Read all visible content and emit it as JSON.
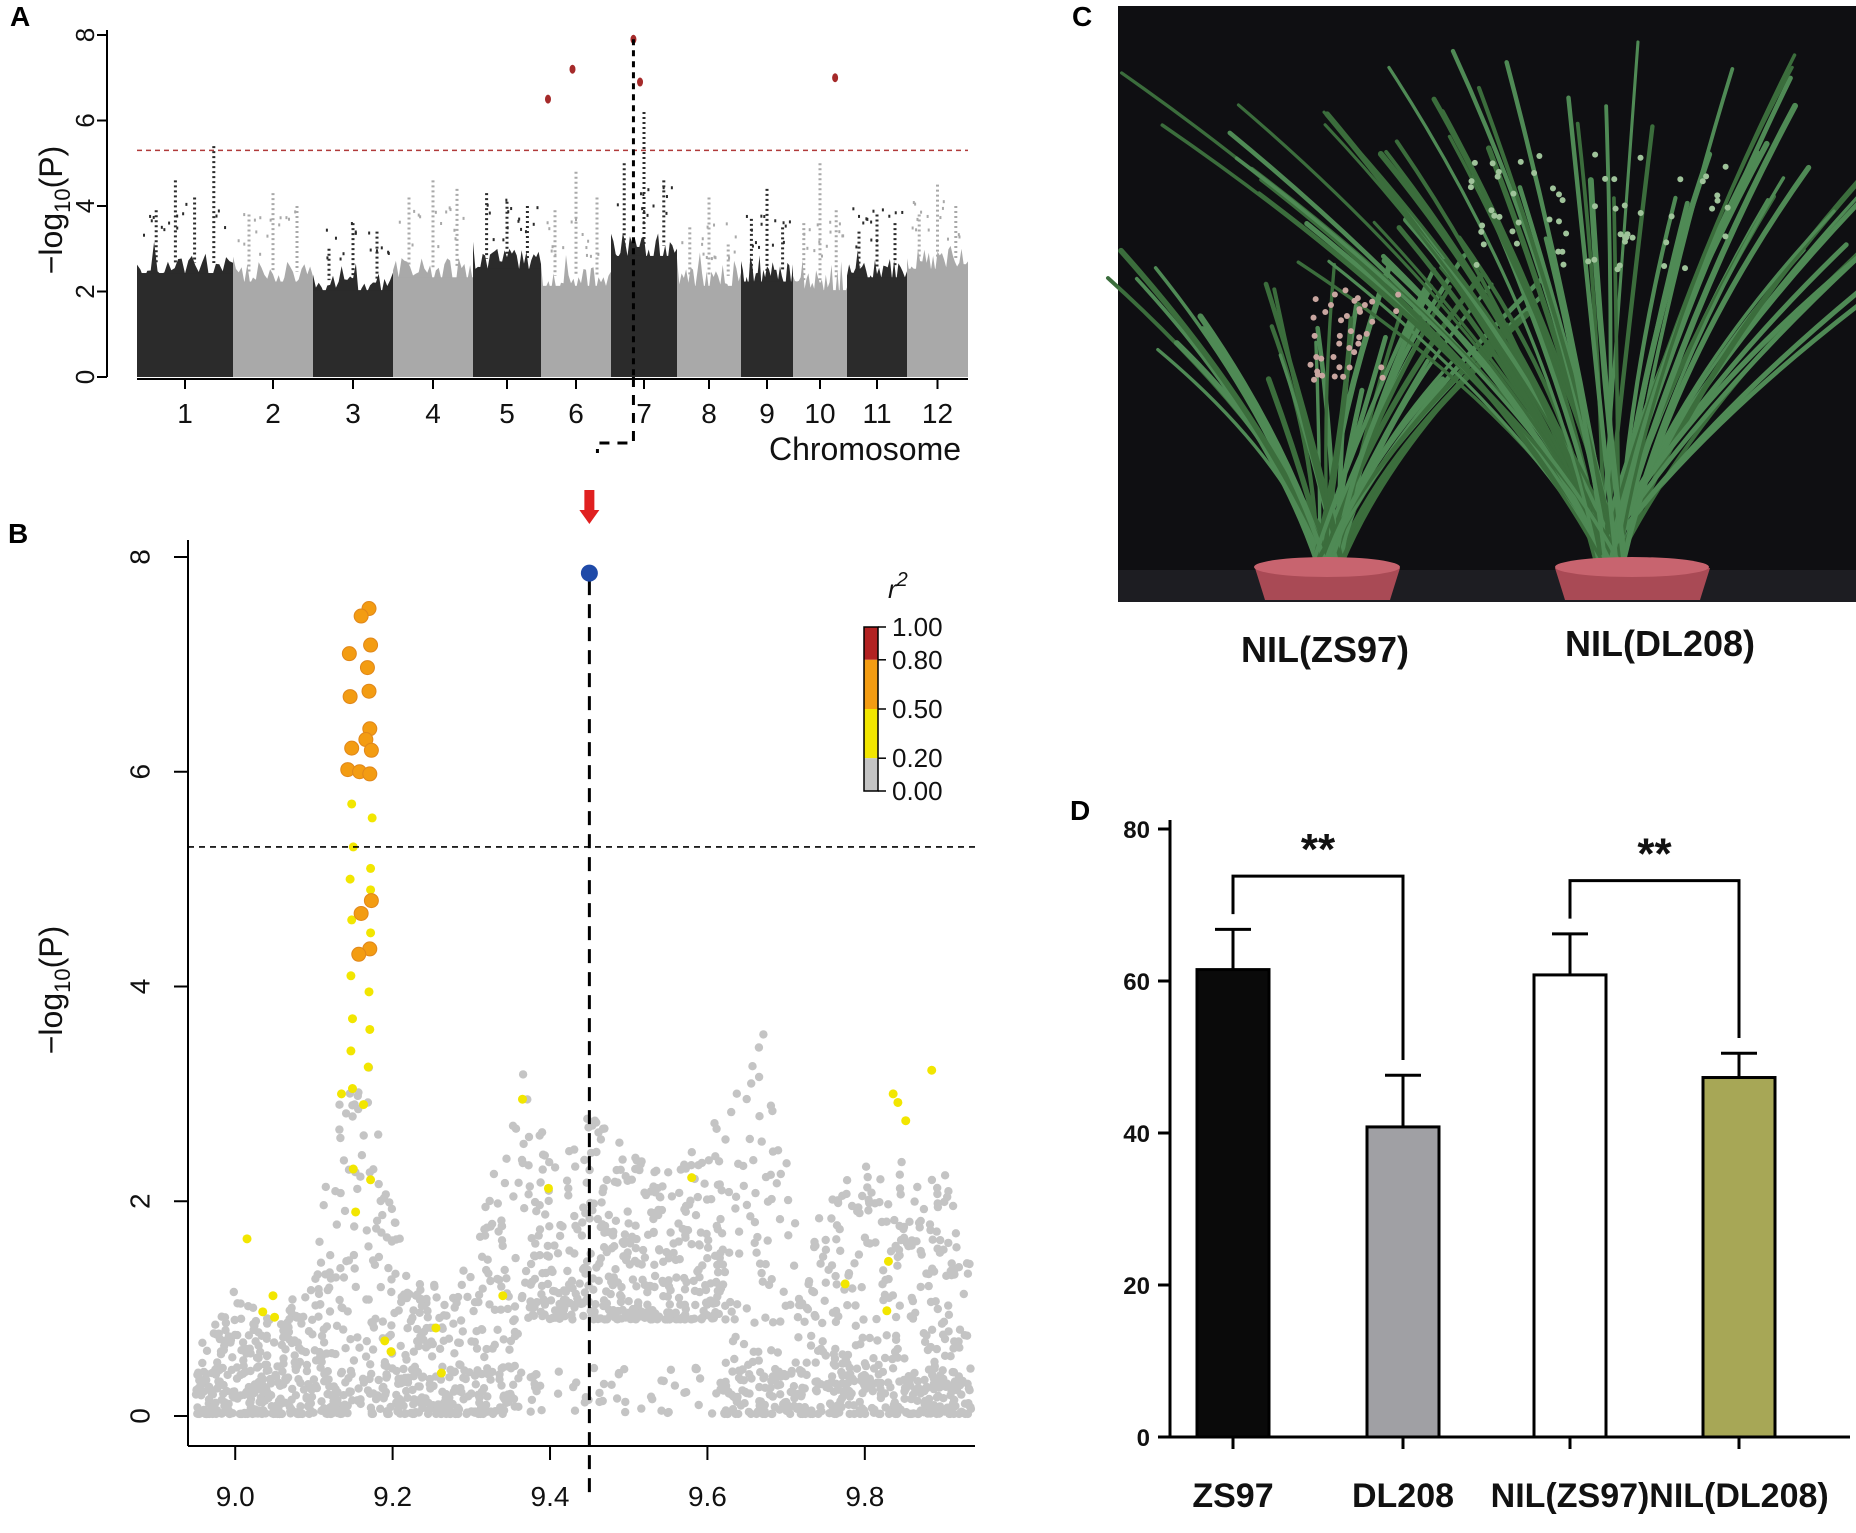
{
  "panel_labels": {
    "a": "A",
    "b": "B",
    "c": "C",
    "d": "D"
  },
  "colors": {
    "dark": "#2b2b2b",
    "light": "#a9a9a9",
    "threshold": "#b03a3a",
    "peak": "#a52a2a",
    "lead": "#1f4aa8",
    "grey_point": "#c4c4c4",
    "r2_high": "#b22222",
    "r2_mid": "#f39c12",
    "r2_low": "#f2e600",
    "bar_zs97": "#0a0a0a",
    "bar_dl208": "#a0a0a4",
    "bar_nilzs97": "#ffffff",
    "bar_nildl208": "#a7a756",
    "photo_bg": "#0f0f12",
    "plant": "#3b6d3c"
  },
  "chart_data": [
    {
      "id": "A",
      "type": "scatter",
      "title": "",
      "xlabel": "Chromosome",
      "ylabel": "−log₁₀(P)",
      "ylabel_parts": {
        "prefix": "−log",
        "sub": "10",
        "suffix": "(P)"
      },
      "ylim": [
        0,
        8
      ],
      "yticks": [
        "0",
        "2",
        "4",
        "6",
        "8"
      ],
      "threshold": 5.3,
      "chromosomes": [
        {
          "label": "1",
          "shade": "dark",
          "base_max": 2.9,
          "spikes": [
            3.9,
            4.6,
            4.2,
            5.4
          ]
        },
        {
          "label": "2",
          "shade": "light",
          "base_max": 2.7,
          "spikes": [
            3.8,
            4.3,
            4.0
          ]
        },
        {
          "label": "3",
          "shade": "dark",
          "base_max": 2.5,
          "spikes": [
            3.0,
            3.6,
            3.4
          ]
        },
        {
          "label": "4",
          "shade": "light",
          "base_max": 2.8,
          "spikes": [
            4.2,
            4.6,
            4.4
          ]
        },
        {
          "label": "5",
          "shade": "dark",
          "base_max": 3.0,
          "spikes": [
            4.3,
            4.1,
            4.0
          ]
        },
        {
          "label": "6",
          "shade": "light",
          "base_max": 2.6,
          "spikes": [
            3.9,
            4.8,
            4.2
          ]
        },
        {
          "label": "7",
          "shade": "dark",
          "base_max": 3.3,
          "spikes": [
            5.0,
            6.2,
            4.6
          ]
        },
        {
          "label": "8",
          "shade": "light",
          "base_max": 2.6,
          "spikes": [
            3.5,
            4.2,
            3.1
          ]
        },
        {
          "label": "9",
          "shade": "dark",
          "base_max": 2.7,
          "spikes": [
            3.7,
            4.4,
            3.5
          ]
        },
        {
          "label": "10",
          "shade": "light",
          "base_max": 2.5,
          "spikes": [
            3.6,
            5.0,
            3.9
          ]
        },
        {
          "label": "11",
          "shade": "dark",
          "base_max": 2.8,
          "spikes": [
            3.4,
            3.8,
            3.6
          ]
        },
        {
          "label": "12",
          "shade": "light",
          "base_max": 3.0,
          "spikes": [
            3.8,
            4.5,
            4.0
          ]
        }
      ],
      "significant_points": [
        {
          "chrom": "6",
          "pos": 0.1,
          "y": 6.5
        },
        {
          "chrom": "6",
          "pos": 0.45,
          "y": 7.2
        },
        {
          "chrom": "7",
          "pos": 0.34,
          "y": 7.9
        },
        {
          "chrom": "7",
          "pos": 0.44,
          "y": 6.9
        },
        {
          "chrom": "10",
          "pos": 0.78,
          "y": 7.0
        }
      ],
      "highlight_chrom": "7"
    },
    {
      "id": "B",
      "type": "scatter",
      "title": "",
      "xlabel": "",
      "ylabel": "−log₁₀(P)",
      "ylabel_parts": {
        "prefix": "−log",
        "sub": "10",
        "suffix": "(P)"
      },
      "xlim": [
        8.94,
        9.94
      ],
      "ylim": [
        0,
        8
      ],
      "xticks": [
        "9.0",
        "9.2",
        "9.4",
        "9.6",
        "9.8"
      ],
      "yticks": [
        "0",
        "2",
        "4",
        "6",
        "8"
      ],
      "threshold": 5.3,
      "lead_snp": {
        "x": 9.45,
        "y": 7.85
      },
      "legend": {
        "title": "r",
        "title_sup": "2",
        "breaks": [
          "1.00",
          "0.80",
          "0.50",
          "0.20",
          "0.00"
        ]
      },
      "cluster": {
        "x_from": 9.13,
        "x_to": 9.18
      },
      "orange_points": [
        {
          "x": 9.17,
          "y": 7.52
        },
        {
          "x": 9.16,
          "y": 7.45
        },
        {
          "x": 9.172,
          "y": 7.18
        },
        {
          "x": 9.145,
          "y": 7.1
        },
        {
          "x": 9.168,
          "y": 6.97
        },
        {
          "x": 9.17,
          "y": 6.75
        },
        {
          "x": 9.146,
          "y": 6.7
        },
        {
          "x": 9.171,
          "y": 6.4
        },
        {
          "x": 9.166,
          "y": 6.3
        },
        {
          "x": 9.148,
          "y": 6.22
        },
        {
          "x": 9.173,
          "y": 6.2
        },
        {
          "x": 9.143,
          "y": 6.02
        },
        {
          "x": 9.158,
          "y": 6.0
        },
        {
          "x": 9.171,
          "y": 5.98
        },
        {
          "x": 9.173,
          "y": 4.8
        },
        {
          "x": 9.16,
          "y": 4.68
        },
        {
          "x": 9.171,
          "y": 4.35
        },
        {
          "x": 9.157,
          "y": 4.3
        }
      ],
      "yellow_points": [
        {
          "x": 9.148,
          "y": 5.7
        },
        {
          "x": 9.174,
          "y": 5.57
        },
        {
          "x": 9.15,
          "y": 5.3
        },
        {
          "x": 9.172,
          "y": 5.1
        },
        {
          "x": 9.146,
          "y": 5.0
        },
        {
          "x": 9.172,
          "y": 4.9
        },
        {
          "x": 9.148,
          "y": 4.62
        },
        {
          "x": 9.172,
          "y": 4.5
        },
        {
          "x": 9.147,
          "y": 4.1
        },
        {
          "x": 9.17,
          "y": 3.95
        },
        {
          "x": 9.149,
          "y": 3.7
        },
        {
          "x": 9.171,
          "y": 3.6
        },
        {
          "x": 9.147,
          "y": 3.4
        },
        {
          "x": 9.169,
          "y": 3.25
        },
        {
          "x": 9.149,
          "y": 3.05
        },
        {
          "x": 9.135,
          "y": 3.0
        },
        {
          "x": 9.163,
          "y": 2.9
        },
        {
          "x": 9.15,
          "y": 2.3
        },
        {
          "x": 9.172,
          "y": 2.2
        },
        {
          "x": 9.153,
          "y": 1.9
        },
        {
          "x": 9.015,
          "y": 1.65
        },
        {
          "x": 9.035,
          "y": 0.97
        },
        {
          "x": 9.048,
          "y": 1.12
        },
        {
          "x": 9.05,
          "y": 0.92
        },
        {
          "x": 9.19,
          "y": 0.7
        },
        {
          "x": 9.198,
          "y": 0.6
        },
        {
          "x": 9.255,
          "y": 0.82
        },
        {
          "x": 9.262,
          "y": 0.4
        },
        {
          "x": 9.34,
          "y": 1.12
        },
        {
          "x": 9.365,
          "y": 2.95
        },
        {
          "x": 9.398,
          "y": 2.12
        },
        {
          "x": 9.58,
          "y": 2.22
        },
        {
          "x": 9.775,
          "y": 1.23
        },
        {
          "x": 9.83,
          "y": 1.44
        },
        {
          "x": 9.836,
          "y": 3.0
        },
        {
          "x": 9.842,
          "y": 2.92
        },
        {
          "x": 9.852,
          "y": 2.75
        },
        {
          "x": 9.885,
          "y": 3.22
        },
        {
          "x": 9.828,
          "y": 0.98
        }
      ],
      "grey_profile": [
        {
          "x": 8.95,
          "y": 0.8
        },
        {
          "x": 9.0,
          "y": 1.2
        },
        {
          "x": 9.05,
          "y": 0.9
        },
        {
          "x": 9.1,
          "y": 1.4
        },
        {
          "x": 9.13,
          "y": 2.9
        },
        {
          "x": 9.17,
          "y": 3.3
        },
        {
          "x": 9.22,
          "y": 1.2
        },
        {
          "x": 9.3,
          "y": 1.5
        },
        {
          "x": 9.36,
          "y": 3.4
        },
        {
          "x": 9.4,
          "y": 2.4
        },
        {
          "x": 9.45,
          "y": 2.8
        },
        {
          "x": 9.5,
          "y": 2.5
        },
        {
          "x": 9.55,
          "y": 2.3
        },
        {
          "x": 9.6,
          "y": 2.6
        },
        {
          "x": 9.67,
          "y": 3.6
        },
        {
          "x": 9.72,
          "y": 1.6
        },
        {
          "x": 9.78,
          "y": 2.3
        },
        {
          "x": 9.84,
          "y": 2.4
        },
        {
          "x": 9.9,
          "y": 2.3
        },
        {
          "x": 9.94,
          "y": 2.0
        }
      ]
    },
    {
      "id": "D",
      "type": "bar",
      "title": "",
      "xlabel": "",
      "ylabel": "",
      "categories": [
        "ZS97",
        "DL208",
        "NIL(ZS97)",
        "NIL(DL208)"
      ],
      "values": [
        61.5,
        40.8,
        60.8,
        47.3
      ],
      "errors": [
        5.3,
        6.8,
        5.4,
        3.2
      ],
      "ylim": [
        0,
        80
      ],
      "yticks": [
        "0",
        "20",
        "40",
        "60",
        "80"
      ],
      "comparisons": [
        {
          "from": 0,
          "to": 1,
          "label": "**"
        },
        {
          "from": 2,
          "to": 3,
          "label": "**"
        }
      ]
    }
  ],
  "photo": {
    "caption_left": "NIL(ZS97)",
    "caption_right": "NIL(DL208)"
  }
}
